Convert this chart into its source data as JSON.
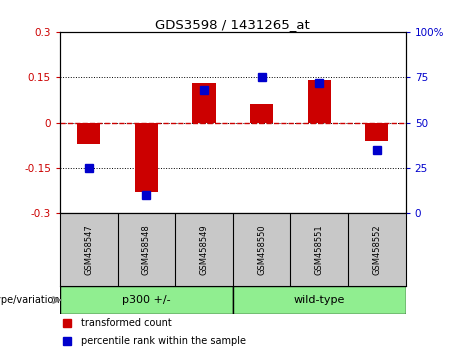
{
  "title": "GDS3598 / 1431265_at",
  "samples": [
    "GSM458547",
    "GSM458548",
    "GSM458549",
    "GSM458550",
    "GSM458551",
    "GSM458552"
  ],
  "red_values": [
    -0.07,
    -0.23,
    0.13,
    0.06,
    0.14,
    -0.06
  ],
  "blue_values": [
    25,
    10,
    68,
    75,
    72,
    35
  ],
  "groups": [
    {
      "label": "p300 +/-",
      "indices": [
        0,
        1,
        2
      ],
      "color": "#90EE90"
    },
    {
      "label": "wild-type",
      "indices": [
        3,
        4,
        5
      ],
      "color": "#90EE90"
    }
  ],
  "group_label": "genotype/variation",
  "ylim_left": [
    -0.3,
    0.3
  ],
  "ylim_right": [
    0,
    100
  ],
  "yticks_left": [
    -0.3,
    -0.15,
    0,
    0.15,
    0.3
  ],
  "yticks_right": [
    0,
    25,
    50,
    75,
    100
  ],
  "red_color": "#CC0000",
  "blue_color": "#0000CC",
  "bar_width": 0.4,
  "blue_marker_size": 6,
  "bg_color": "#FFFFFF",
  "plot_bg_color": "#FFFFFF",
  "tick_label_area_bg": "#C8C8C8",
  "legend_red_label": "transformed count",
  "legend_blue_label": "percentile rank within the sample"
}
